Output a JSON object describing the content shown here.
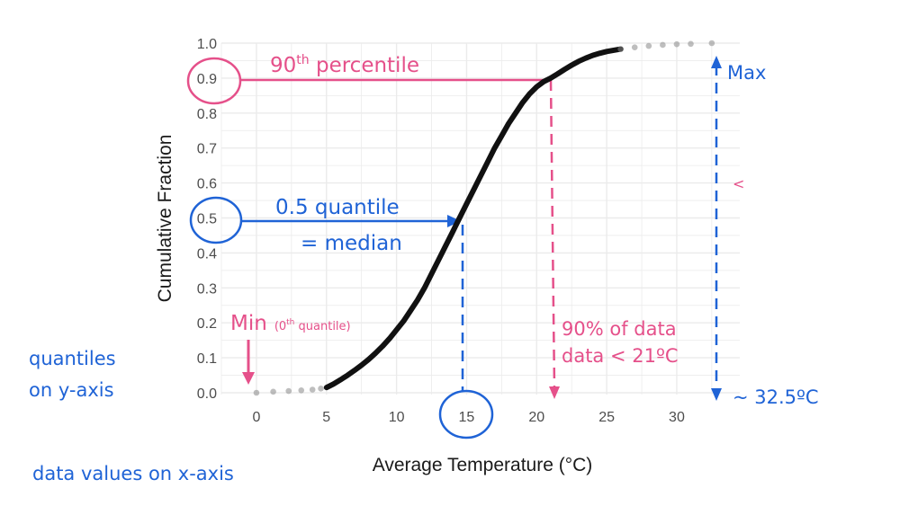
{
  "chart_data": {
    "type": "line",
    "xlabel": "Average Temperature (°C)",
    "ylabel": "Cumulative Fraction",
    "xlim": [
      -2.5,
      34.5
    ],
    "ylim": [
      0,
      1
    ],
    "x_ticks": [
      0,
      5,
      10,
      15,
      20,
      25,
      30
    ],
    "y_ticks": [
      0.0,
      0.1,
      0.2,
      0.3,
      0.4,
      0.5,
      0.6,
      0.7,
      0.8,
      0.9,
      1.0
    ],
    "y_tick_labels": [
      "0.0",
      "0.1",
      "0.2",
      "0.3",
      "0.4",
      "0.5",
      "0.6",
      "0.7",
      "0.8",
      "0.9",
      "1.0"
    ],
    "grid": true,
    "series": [
      {
        "x": [
          0.0,
          1.2,
          2.3,
          3.2,
          4.0,
          4.6,
          5.0,
          5.5,
          6.0,
          6.5,
          7.0,
          7.5,
          8.0,
          8.5,
          9.0,
          9.5,
          10.0,
          10.5,
          11.0,
          11.5,
          12.0,
          12.5,
          13.0,
          13.5,
          14.0,
          14.5,
          15.0,
          15.5,
          16.0,
          16.5,
          17.0,
          17.5,
          18.0,
          18.5,
          19.0,
          19.5,
          20.0,
          20.5,
          21.0,
          21.5,
          22.0,
          22.5,
          23.0,
          23.5,
          24.0,
          24.5,
          25.0,
          26.0,
          27.0,
          28.0,
          29.0,
          30.0,
          31.0,
          32.5
        ],
        "y": [
          0.0,
          0.003,
          0.005,
          0.007,
          0.009,
          0.012,
          0.015,
          0.025,
          0.037,
          0.05,
          0.064,
          0.079,
          0.095,
          0.113,
          0.133,
          0.155,
          0.18,
          0.205,
          0.235,
          0.265,
          0.3,
          0.34,
          0.38,
          0.42,
          0.46,
          0.5,
          0.54,
          0.58,
          0.62,
          0.66,
          0.7,
          0.735,
          0.77,
          0.8,
          0.83,
          0.855,
          0.875,
          0.89,
          0.9,
          0.912,
          0.925,
          0.937,
          0.948,
          0.957,
          0.965,
          0.971,
          0.976,
          0.983,
          0.988,
          0.992,
          0.995,
          0.997,
          0.998,
          1.0
        ]
      }
    ],
    "annotations": {
      "percentile90": {
        "text": "90",
        "sup": "th",
        "rest": " percentile"
      },
      "quantile05": {
        "line1": "0.5 quantile",
        "line2": "= median"
      },
      "min": {
        "text": "Min",
        "note": "(0",
        "note_sup": "th",
        "note_rest": " quantile)"
      },
      "max": {
        "text": "Max"
      },
      "ninety_pct": {
        "line1": "90% of data",
        "line2": "data < 21ºC"
      },
      "max_value": {
        "text": "~ 32.5ºC"
      },
      "stray_mark": {
        "text": "<"
      },
      "y_note": {
        "line1": "quantiles",
        "line2": "on y-axis"
      },
      "x_note": {
        "text": "data values on x-axis"
      }
    },
    "colors": {
      "pink": "#e5508a",
      "blue": "#1f63d6",
      "curve": "#111111",
      "grid": "#ebebeb"
    }
  }
}
